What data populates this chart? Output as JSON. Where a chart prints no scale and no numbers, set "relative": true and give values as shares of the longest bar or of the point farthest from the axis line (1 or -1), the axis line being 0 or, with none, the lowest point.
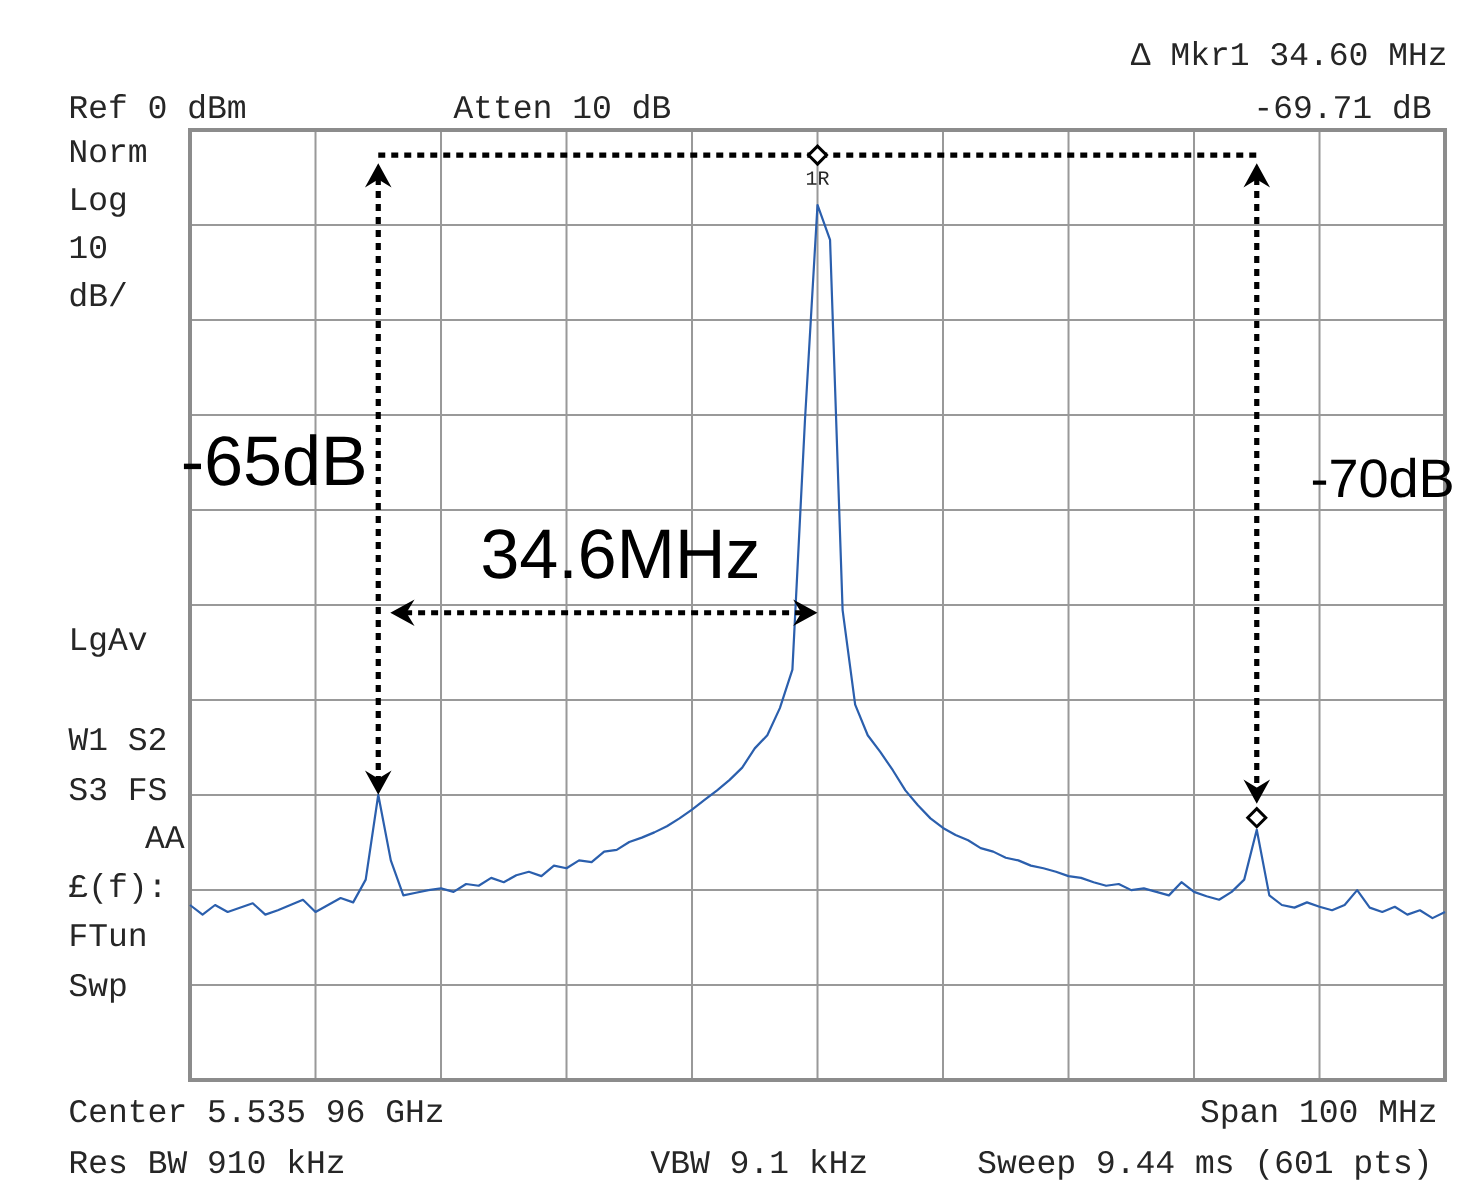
{
  "chart_data": {
    "type": "line",
    "relative": true,
    "grid": true,
    "categories": [
      null,
      null,
      null,
      null,
      null,
      null,
      null,
      null,
      null,
      null,
      null,
      null,
      null,
      null,
      null,
      null,
      null,
      null,
      null,
      null,
      null,
      null,
      null,
      null,
      null,
      null,
      null,
      null,
      null,
      null,
      null,
      null,
      null,
      null,
      null,
      null,
      null,
      null,
      null,
      null,
      null,
      null,
      null,
      null,
      null,
      null,
      null,
      null,
      null,
      null,
      null,
      null,
      null,
      null,
      null,
      null,
      null,
      null,
      null,
      null,
      null,
      null,
      null,
      null,
      null,
      null,
      null,
      null,
      null,
      null,
      null,
      null,
      null,
      null,
      null,
      null,
      null,
      null,
      null,
      null,
      null,
      null,
      null,
      null,
      null,
      null,
      null,
      null,
      null,
      null,
      null,
      null,
      null,
      null,
      null,
      null,
      null,
      null,
      null,
      null,
      null
    ],
    "series": [
      {
        "color": "#2b5fad",
        "values": [
          0.2,
          0.189,
          0.2,
          0.192,
          0.197,
          0.202,
          0.189,
          0.194,
          0.2,
          0.206,
          0.192,
          0.2,
          0.208,
          0.203,
          0.229,
          0.326,
          0.251,
          0.211,
          0.214,
          0.217,
          0.219,
          0.215,
          0.224,
          0.222,
          0.231,
          0.226,
          0.234,
          0.238,
          0.233,
          0.245,
          0.242,
          0.251,
          0.249,
          0.261,
          0.263,
          0.272,
          0.277,
          0.283,
          0.29,
          0.299,
          0.309,
          0.32,
          0.331,
          0.343,
          0.357,
          0.379,
          0.394,
          0.425,
          0.469,
          0.754,
          1.0,
          0.96,
          0.537,
          0.429,
          0.394,
          0.375,
          0.354,
          0.331,
          0.314,
          0.299,
          0.288,
          0.28,
          0.274,
          0.265,
          0.261,
          0.254,
          0.251,
          0.245,
          0.242,
          0.238,
          0.233,
          0.231,
          0.226,
          0.222,
          0.224,
          0.217,
          0.219,
          0.215,
          0.211,
          0.226,
          0.215,
          0.21,
          0.206,
          0.215,
          0.229,
          0.286,
          0.211,
          0.2,
          0.197,
          0.203,
          0.198,
          0.194,
          0.2,
          0.217,
          0.197,
          0.192,
          0.198,
          0.189,
          0.194,
          0.185,
          0.192
        ]
      }
    ],
    "annotations": [
      "Ref 0 dBm",
      "Atten 10 dB",
      "Δ Mkr1  34.60 MHz",
      "-69.71 dB",
      "Norm",
      "Log",
      "10",
      "dB/",
      "LgAv",
      "W1  S2",
      "S3  FS",
      "AA",
      "£(f):",
      "FTun",
      "Swp",
      "Center 5.535 96 GHz",
      "Span 100 MHz",
      "Res BW 910 kHz",
      "VBW 9.1 kHz",
      "Sweep 9.44 ms (601 pts)",
      "-65dB",
      "34.6MHz",
      "-70dB",
      "1R"
    ]
  }
}
